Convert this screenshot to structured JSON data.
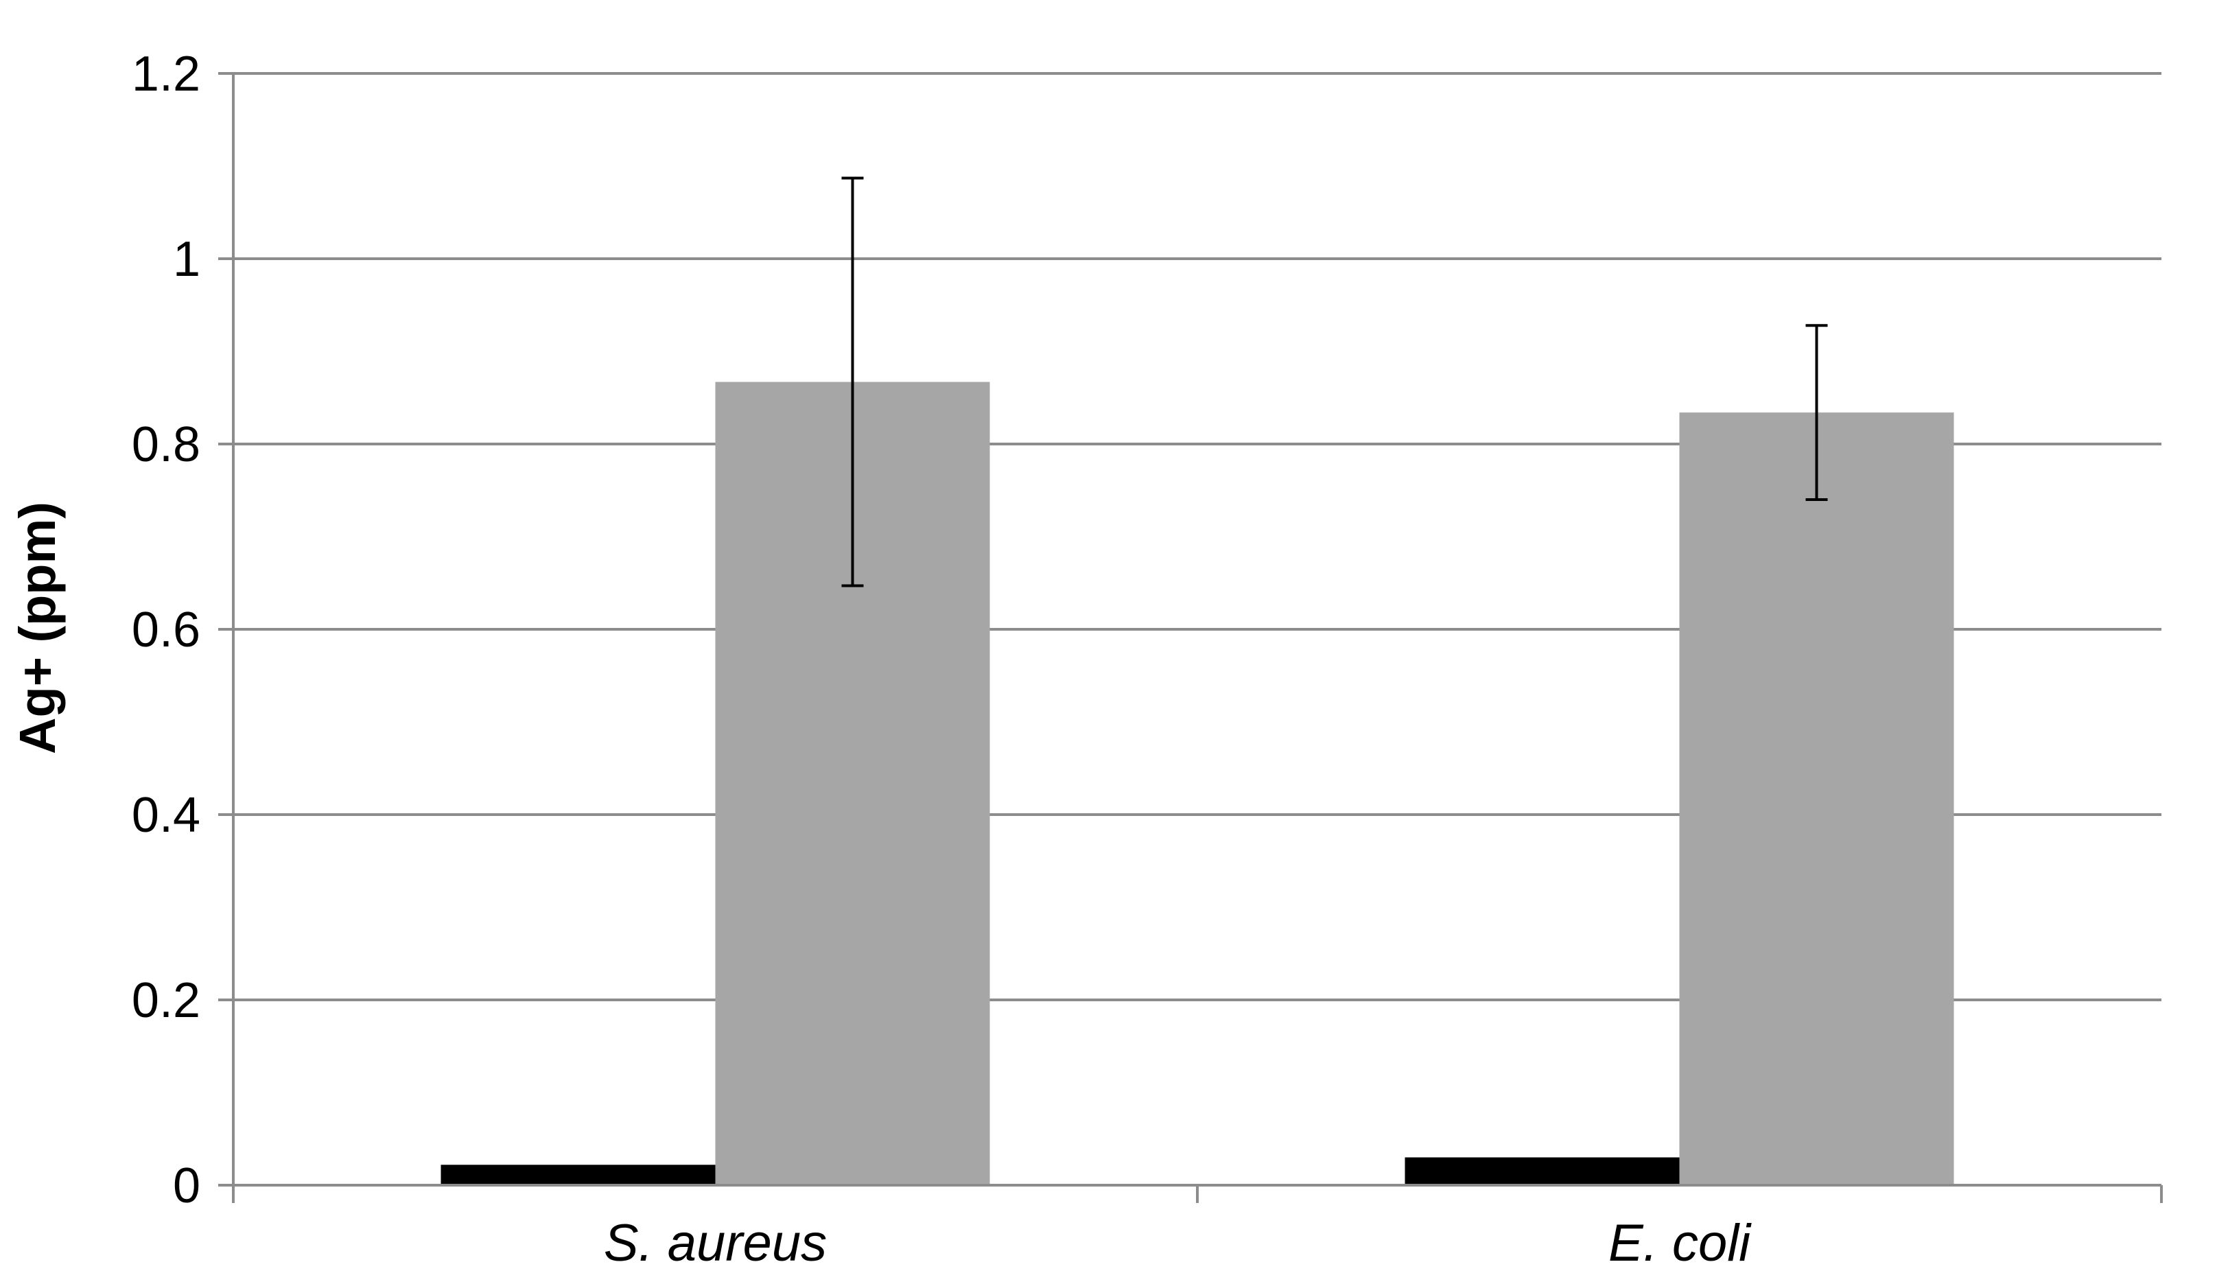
{
  "chart_data": {
    "type": "bar",
    "title": "",
    "xlabel": "",
    "ylabel": "Ag+ (ppm)",
    "categories": [
      "S. aureus",
      "E. coli"
    ],
    "series": [
      {
        "values": [
          0.022,
          0.03
        ],
        "error": [
          0,
          0
        ],
        "color": "#000000"
      },
      {
        "values": [
          0.867,
          0.834
        ],
        "error": [
          0.22,
          0.094
        ],
        "color": "#a6a6a6"
      }
    ],
    "ylim": [
      0,
      1.2
    ],
    "yticks": [
      "0",
      "0.2",
      "0.4",
      "0.6",
      "0.8",
      "1",
      "1.2"
    ],
    "grid": true,
    "legend": "none"
  },
  "colors": {
    "gridline": "#8c8c8c",
    "axis": "#8c8c8c",
    "error_bar": "#000000"
  }
}
